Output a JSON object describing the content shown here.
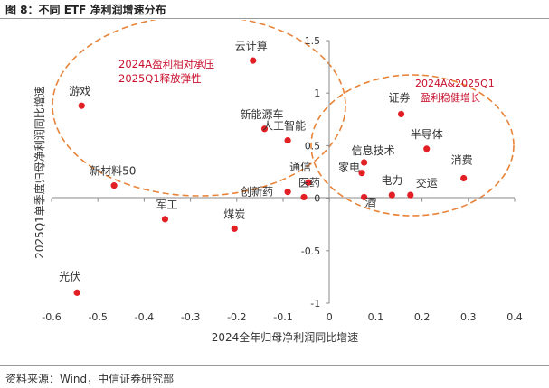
{
  "figure": {
    "title": "图 8：不同 ETF 净利润增速分布",
    "source": "资料来源：Wind，中信证券研究部"
  },
  "chart_data": {
    "type": "scatter",
    "title": "",
    "xlabel": "2024全年归母净利润同比增速",
    "ylabel": "2025Q1单季度归母净利润同比增速",
    "xlim": [
      -0.6,
      0.4
    ],
    "ylim": [
      -1,
      1.5
    ],
    "xticks": [
      -0.6,
      -0.5,
      -0.4,
      -0.3,
      -0.2,
      -0.1,
      0,
      0.1,
      0.2,
      0.3,
      0.4
    ],
    "yticks": [
      -1,
      -0.5,
      0,
      0.5,
      1,
      1.5
    ],
    "grid": false,
    "colors": {
      "point": "#E31F26",
      "annotation": "#C8102E",
      "ellipse": "#E8843A",
      "axis": "#888888"
    },
    "points": [
      {
        "label": "云计算",
        "x": -0.165,
        "y": 1.31
      },
      {
        "label": "游戏",
        "x": -0.535,
        "y": 0.88
      },
      {
        "label": "新能源车",
        "x": -0.14,
        "y": 0.66
      },
      {
        "label": "人工智能",
        "x": -0.09,
        "y": 0.55
      },
      {
        "label": "新材料50",
        "x": -0.465,
        "y": 0.12
      },
      {
        "label": "通信",
        "x": -0.045,
        "y": 0.15
      },
      {
        "label": "创新药",
        "x": -0.09,
        "y": 0.06
      },
      {
        "label": "医药",
        "x": -0.055,
        "y": 0.01
      },
      {
        "label": "军工",
        "x": -0.355,
        "y": -0.2
      },
      {
        "label": "煤炭",
        "x": -0.205,
        "y": -0.29
      },
      {
        "label": "光伏",
        "x": -0.545,
        "y": -0.9
      },
      {
        "label": "证券",
        "x": 0.155,
        "y": 0.8
      },
      {
        "label": "半导体",
        "x": 0.21,
        "y": 0.47
      },
      {
        "label": "信息技术",
        "x": 0.075,
        "y": 0.34
      },
      {
        "label": "家电",
        "x": 0.07,
        "y": 0.24
      },
      {
        "label": "消费",
        "x": 0.29,
        "y": 0.19
      },
      {
        "label": "电力",
        "x": 0.135,
        "y": 0.03
      },
      {
        "label": "交运",
        "x": 0.175,
        "y": 0.03
      },
      {
        "label": "酒",
        "x": 0.075,
        "y": 0.01
      }
    ],
    "annotations": [
      {
        "lines": [
          "2024A盈利相对承压",
          "2025Q1释放弹性"
        ]
      },
      {
        "lines": [
          "2024A&2025Q1",
          "盈利稳健增长"
        ]
      }
    ]
  }
}
